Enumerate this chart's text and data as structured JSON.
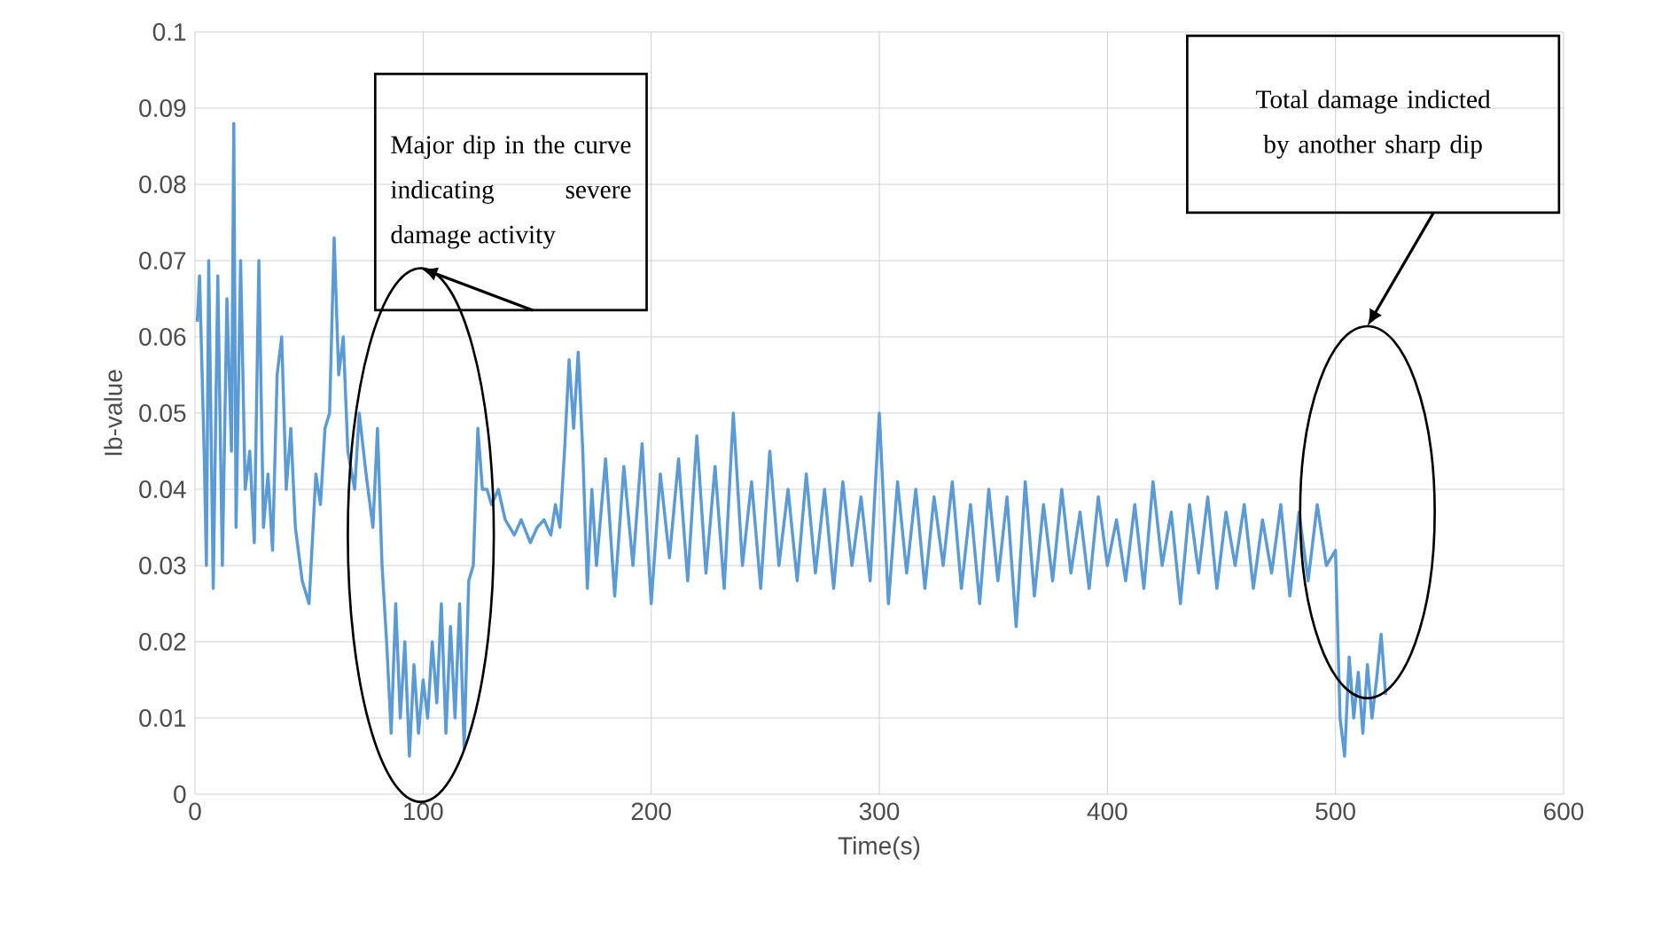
{
  "chart_data": {
    "type": "line",
    "xlabel": "Time(s)",
    "ylabel": "Ib-value",
    "xlim": [
      0,
      600
    ],
    "xticks": [
      0,
      100,
      200,
      300,
      400,
      500,
      600
    ],
    "ylim": [
      0,
      0.1
    ],
    "yticks": [
      0,
      0.01,
      0.02,
      0.03,
      0.04,
      0.05,
      0.06,
      0.07,
      0.08,
      0.09,
      0.1
    ],
    "grid": true,
    "marker": "none",
    "line_style": "solid",
    "annotations": [
      "Major dip in the curve indicating severe damage activity",
      "Total damage indicted by another sharp dip"
    ],
    "series": [
      {
        "color": "#5b9bd5",
        "x": [
          1,
          2,
          4,
          5,
          6,
          8,
          10,
          12,
          14,
          16,
          17,
          18,
          20,
          22,
          24,
          26,
          28,
          30,
          32,
          34,
          36,
          38,
          40,
          42,
          44,
          47,
          50,
          53,
          55,
          57,
          59,
          61,
          63,
          65,
          67,
          70,
          72,
          75,
          78,
          80,
          82,
          84,
          86,
          88,
          90,
          92,
          94,
          96,
          98,
          100,
          102,
          104,
          106,
          108,
          110,
          112,
          114,
          116,
          118,
          120,
          122,
          124,
          126,
          128,
          130,
          133,
          136,
          140,
          143,
          147,
          150,
          153,
          156,
          158,
          160,
          162,
          164,
          166,
          168,
          170,
          172,
          174,
          176,
          180,
          184,
          188,
          192,
          196,
          200,
          204,
          208,
          212,
          216,
          220,
          224,
          228,
          232,
          236,
          240,
          244,
          248,
          252,
          256,
          260,
          264,
          268,
          272,
          276,
          280,
          284,
          288,
          292,
          296,
          300,
          304,
          308,
          312,
          316,
          320,
          324,
          328,
          332,
          336,
          340,
          344,
          348,
          352,
          356,
          360,
          364,
          368,
          372,
          376,
          380,
          384,
          388,
          392,
          396,
          400,
          404,
          408,
          412,
          416,
          420,
          424,
          428,
          432,
          436,
          440,
          444,
          448,
          452,
          456,
          460,
          464,
          468,
          472,
          476,
          480,
          484,
          488,
          492,
          496,
          500,
          502,
          504,
          506,
          508,
          510,
          512,
          514,
          516,
          518,
          520,
          522
        ],
        "values": [
          0.062,
          0.068,
          0.045,
          0.03,
          0.07,
          0.027,
          0.068,
          0.03,
          0.065,
          0.045,
          0.088,
          0.035,
          0.07,
          0.04,
          0.045,
          0.033,
          0.07,
          0.035,
          0.042,
          0.032,
          0.055,
          0.06,
          0.04,
          0.048,
          0.035,
          0.028,
          0.025,
          0.042,
          0.038,
          0.048,
          0.05,
          0.073,
          0.055,
          0.06,
          0.045,
          0.04,
          0.05,
          0.042,
          0.035,
          0.048,
          0.03,
          0.02,
          0.008,
          0.025,
          0.01,
          0.02,
          0.005,
          0.017,
          0.008,
          0.015,
          0.01,
          0.02,
          0.012,
          0.025,
          0.008,
          0.022,
          0.01,
          0.025,
          0.006,
          0.028,
          0.03,
          0.048,
          0.04,
          0.04,
          0.038,
          0.04,
          0.036,
          0.034,
          0.036,
          0.033,
          0.035,
          0.036,
          0.034,
          0.038,
          0.035,
          0.045,
          0.057,
          0.048,
          0.058,
          0.045,
          0.027,
          0.04,
          0.03,
          0.044,
          0.026,
          0.043,
          0.03,
          0.046,
          0.025,
          0.042,
          0.031,
          0.044,
          0.028,
          0.047,
          0.029,
          0.043,
          0.027,
          0.05,
          0.03,
          0.041,
          0.027,
          0.045,
          0.03,
          0.04,
          0.028,
          0.042,
          0.029,
          0.04,
          0.027,
          0.041,
          0.03,
          0.039,
          0.028,
          0.05,
          0.025,
          0.041,
          0.029,
          0.04,
          0.027,
          0.039,
          0.03,
          0.041,
          0.027,
          0.038,
          0.025,
          0.04,
          0.028,
          0.039,
          0.022,
          0.041,
          0.026,
          0.038,
          0.028,
          0.04,
          0.029,
          0.037,
          0.027,
          0.039,
          0.03,
          0.036,
          0.028,
          0.038,
          0.027,
          0.041,
          0.03,
          0.037,
          0.025,
          0.038,
          0.029,
          0.039,
          0.027,
          0.037,
          0.03,
          0.038,
          0.027,
          0.036,
          0.029,
          0.038,
          0.026,
          0.037,
          0.028,
          0.038,
          0.03,
          0.032,
          0.01,
          0.005,
          0.018,
          0.01,
          0.016,
          0.008,
          0.017,
          0.01,
          0.015,
          0.021,
          0.013
        ]
      }
    ]
  }
}
